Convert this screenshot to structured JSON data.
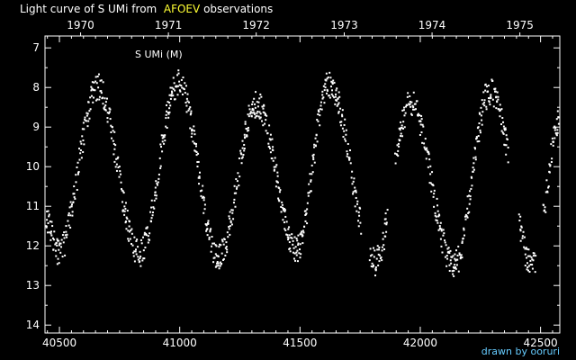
{
  "title": {
    "prefix": "Light curve of S UMi from",
    "source": "AFOEV",
    "suffix": "observations"
  },
  "credit": "drawn by ooruri",
  "colors": {
    "background": "#000000",
    "foreground": "#ffffff",
    "source_highlight": "#ffff33",
    "credit": "#66ccff"
  },
  "chart_data": {
    "type": "scatter",
    "star_label": "S UMi (M)",
    "xlim": [
      40440,
      42580
    ],
    "ylim": [
      14.2,
      6.7
    ],
    "y_inverted": true,
    "x_ticks": [
      40500,
      41000,
      41500,
      42000,
      42500
    ],
    "x_tick_labels": [
      "40500",
      "41000",
      "41500",
      "42000",
      "42500"
    ],
    "y_ticks": [
      7,
      8,
      9,
      10,
      11,
      12,
      13,
      14
    ],
    "y_tick_labels": [
      "7",
      "8",
      "9",
      "10",
      "11",
      "12",
      "13",
      "14"
    ],
    "top_axis_years": [
      {
        "label": "1970",
        "jd": 40588
      },
      {
        "label": "1971",
        "jd": 40953
      },
      {
        "label": "1972",
        "jd": 41318
      },
      {
        "label": "1973",
        "jd": 41684
      },
      {
        "label": "1974",
        "jd": 42049
      },
      {
        "label": "1975",
        "jd": 42414
      }
    ],
    "grid": false,
    "cycles": [
      {
        "min_jd": 40495,
        "min_mag": 12.2,
        "max_jd": 40660,
        "max_mag": 8.0
      },
      {
        "min_jd": 40830,
        "min_mag": 12.2,
        "max_jd": 40995,
        "max_mag": 7.9
      },
      {
        "min_jd": 41160,
        "min_mag": 12.3,
        "max_jd": 41320,
        "max_mag": 8.4
      },
      {
        "min_jd": 41485,
        "min_mag": 12.1,
        "max_jd": 41620,
        "max_mag": 7.9
      },
      {
        "min_jd": 41810,
        "min_mag": 12.4,
        "max_jd": 41960,
        "max_mag": 8.4
      },
      {
        "min_jd": 42140,
        "min_mag": 12.5,
        "max_jd": 42290,
        "max_mag": 8.1
      },
      {
        "min_jd": 42470,
        "min_mag": 12.5,
        "max_jd": 42580,
        "max_mag": 8.8
      }
    ],
    "observation_gaps": [
      [
        41755,
        41790
      ],
      [
        41865,
        41895
      ],
      [
        42365,
        42410
      ],
      [
        42480,
        42510
      ]
    ]
  }
}
